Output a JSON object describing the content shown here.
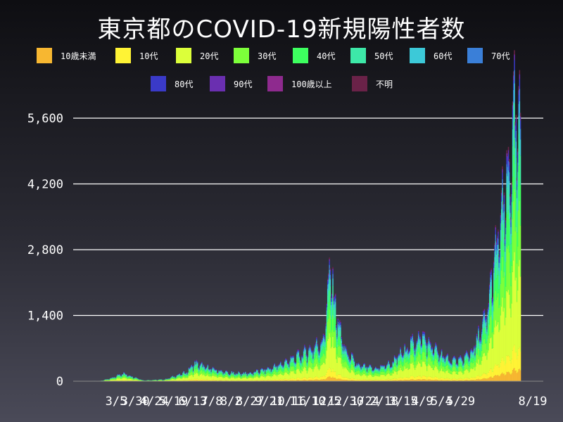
{
  "title": "東京都のCOVID-19新規陽性者数",
  "chart_data": {
    "type": "bar",
    "stacked": true,
    "title": "東京都のCOVID-19新規陽性者数",
    "xlabel": "",
    "ylabel": "",
    "ylim": [
      0,
      5600
    ],
    "yticks": [
      0,
      1400,
      2800,
      4200,
      5600
    ],
    "ytick_labels": [
      "0",
      "1,400",
      "2,800",
      "4,200",
      "5,600"
    ],
    "grid": true,
    "legend_position": "top",
    "x_tick_labels": [
      "3/5",
      "3/30",
      "4/24",
      "5/19",
      "6/13",
      "7/8",
      "8/2",
      "8/27",
      "9/21",
      "10/16",
      "11/10",
      "12/5",
      "12/30",
      "1/24",
      "2/18",
      "3/15",
      "4/9",
      "5/4",
      "5/29",
      "8/19"
    ],
    "series": [
      {
        "name": "10歳未満",
        "color": "#f7b731",
        "share": 0.04
      },
      {
        "name": "10代",
        "color": "#fff335",
        "share": 0.07
      },
      {
        "name": "20代",
        "color": "#dcff3a",
        "share": 0.28
      },
      {
        "name": "30代",
        "color": "#7dff3a",
        "share": 0.19
      },
      {
        "name": "40代",
        "color": "#3dff5f",
        "share": 0.15
      },
      {
        "name": "50代",
        "color": "#3de8a8",
        "share": 0.11
      },
      {
        "name": "60代",
        "color": "#3cc9d8",
        "share": 0.06
      },
      {
        "name": "70代",
        "color": "#3a7fd8",
        "share": 0.04
      },
      {
        "name": "80代",
        "color": "#3a3ac8",
        "share": 0.03
      },
      {
        "name": "90代",
        "color": "#6a2fb0",
        "share": 0.015
      },
      {
        "name": "100歳以上",
        "color": "#8e2a8e",
        "share": 0.002
      },
      {
        "name": "不明",
        "color": "#6a2248",
        "share": 0.013
      }
    ],
    "daily_totals_keyframes": [
      {
        "day": 0,
        "value": 5
      },
      {
        "day": 25,
        "value": 10
      },
      {
        "day": 40,
        "value": 80
      },
      {
        "day": 50,
        "value": 180
      },
      {
        "day": 60,
        "value": 120
      },
      {
        "day": 75,
        "value": 20
      },
      {
        "day": 100,
        "value": 40
      },
      {
        "day": 125,
        "value": 200
      },
      {
        "day": 135,
        "value": 400
      },
      {
        "day": 150,
        "value": 300
      },
      {
        "day": 175,
        "value": 180
      },
      {
        "day": 200,
        "value": 180
      },
      {
        "day": 225,
        "value": 300
      },
      {
        "day": 250,
        "value": 500
      },
      {
        "day": 270,
        "value": 700
      },
      {
        "day": 285,
        "value": 900
      },
      {
        "day": 293,
        "value": 2500
      },
      {
        "day": 300,
        "value": 1500
      },
      {
        "day": 310,
        "value": 700
      },
      {
        "day": 325,
        "value": 350
      },
      {
        "day": 345,
        "value": 280
      },
      {
        "day": 365,
        "value": 400
      },
      {
        "day": 385,
        "value": 800
      },
      {
        "day": 400,
        "value": 1000
      },
      {
        "day": 415,
        "value": 700
      },
      {
        "day": 430,
        "value": 500
      },
      {
        "day": 445,
        "value": 450
      },
      {
        "day": 460,
        "value": 700
      },
      {
        "day": 475,
        "value": 1400
      },
      {
        "day": 490,
        "value": 3300
      },
      {
        "day": 500,
        "value": 4300
      },
      {
        "day": 508,
        "value": 5650
      },
      {
        "day": 515,
        "value": 5400
      }
    ]
  }
}
